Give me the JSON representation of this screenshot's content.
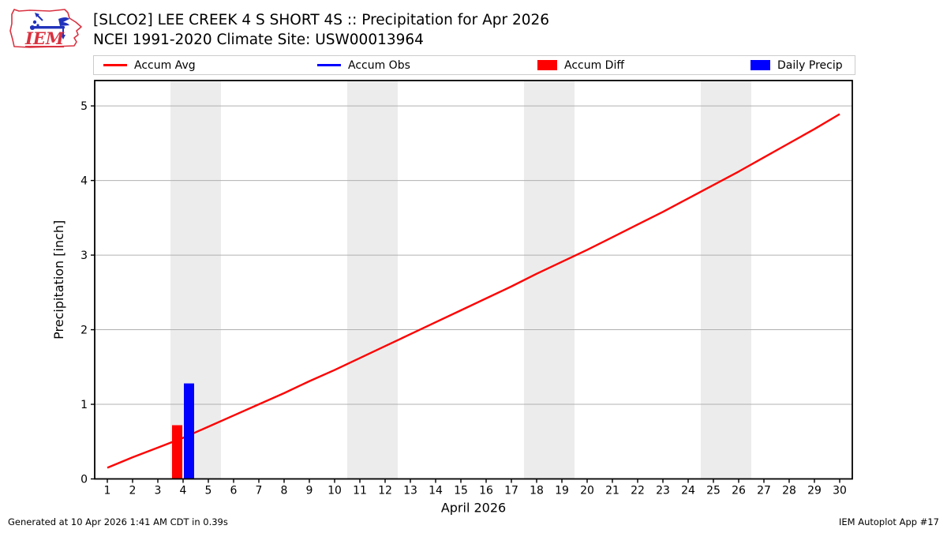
{
  "header": {
    "title": "[SLCO2] LEE CREEK 4 S SHORT 4S :: Precipitation for Apr 2026",
    "subtitle": "NCEI 1991-2020 Climate Site: USW00013964",
    "logo_text": "IEM"
  },
  "legend": {
    "items": [
      {
        "label": "Accum Avg",
        "swatch": "line",
        "color": "#ff0000"
      },
      {
        "label": "Accum Obs",
        "swatch": "line",
        "color": "#0000ff"
      },
      {
        "label": "Accum Diff",
        "swatch": "patch",
        "color": "#ff0000"
      },
      {
        "label": "Daily Precip",
        "swatch": "patch",
        "color": "#0000ff"
      }
    ]
  },
  "chart_data": {
    "type": "mixed",
    "title": "[SLCO2] LEE CREEK 4 S SHORT 4S :: Precipitation for Apr 2026",
    "xlabel": "April 2026",
    "ylabel": "Precipitation [inch]",
    "xlim": [
      0.5,
      30.5
    ],
    "ylim": [
      0,
      5.34
    ],
    "xticks": [
      1,
      2,
      3,
      4,
      5,
      6,
      7,
      8,
      9,
      10,
      11,
      12,
      13,
      14,
      15,
      16,
      17,
      18,
      19,
      20,
      21,
      22,
      23,
      24,
      25,
      26,
      27,
      28,
      29,
      30
    ],
    "yticks": [
      0,
      1,
      2,
      3,
      4,
      5
    ],
    "grid": "horizontal",
    "grid_color": "#b0b0b0",
    "weekend_shading_color": "#ececec",
    "weekend_bands_days": [
      [
        3.5,
        5.5
      ],
      [
        10.5,
        12.5
      ],
      [
        17.5,
        19.5
      ],
      [
        24.5,
        26.5
      ]
    ],
    "series": [
      {
        "name": "Accum Avg",
        "type": "line",
        "color": "#ff0000",
        "x": [
          1,
          2,
          3,
          4,
          5,
          6,
          7,
          8,
          9,
          10,
          11,
          12,
          13,
          14,
          15,
          16,
          17,
          18,
          19,
          20,
          21,
          22,
          23,
          24,
          25,
          26,
          27,
          28,
          29,
          30
        ],
        "values": [
          0.15,
          0.29,
          0.42,
          0.55,
          0.7,
          0.85,
          1.0,
          1.15,
          1.31,
          1.46,
          1.62,
          1.78,
          1.94,
          2.1,
          2.26,
          2.42,
          2.58,
          2.75,
          2.91,
          3.07,
          3.24,
          3.41,
          3.58,
          3.76,
          3.94,
          4.12,
          4.31,
          4.5,
          4.69,
          4.89
        ]
      },
      {
        "name": "Accum Obs",
        "type": "line",
        "color": "#0000ff",
        "x": [],
        "values": []
      },
      {
        "name": "Accum Diff",
        "type": "bar",
        "color": "#ff0000",
        "bar_side": "left",
        "points": [
          {
            "day": 4,
            "value": 0.72
          }
        ]
      },
      {
        "name": "Daily Precip",
        "type": "bar",
        "color": "#0000ff",
        "bar_side": "right",
        "points": [
          {
            "day": 4,
            "value": 1.28
          }
        ]
      }
    ]
  },
  "footer": {
    "left": "Generated at 10 Apr 2026 1:41 AM CDT in 0.39s",
    "right": "IEM Autoplot App #17"
  }
}
